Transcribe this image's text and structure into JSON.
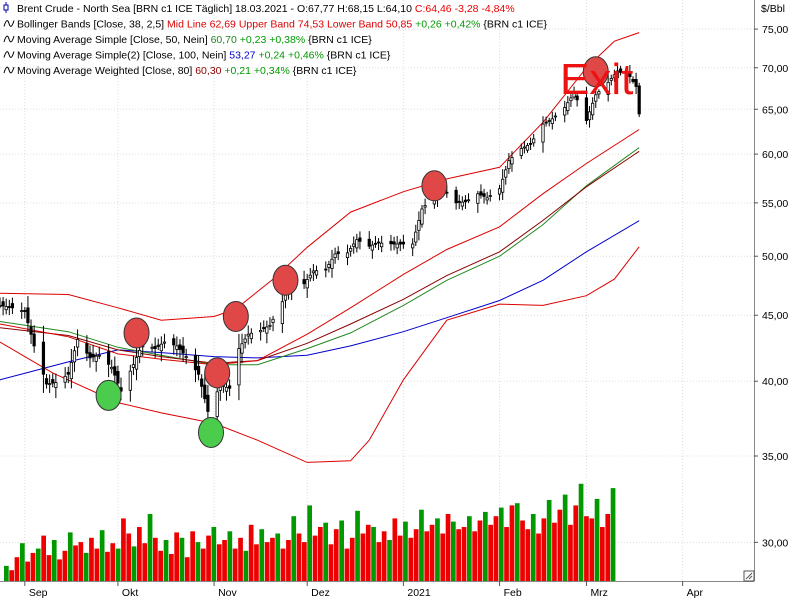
{
  "colors": {
    "background": "#ffffff",
    "grid": "#dddddd",
    "up": "#009900",
    "down": "#ee0000",
    "candle": "#000000",
    "bb_line": "#dd0000",
    "sma50": "#228822",
    "sma100": "#0000cc",
    "wma80": "#8b0000",
    "signal_red": "#e04848",
    "signal_green": "#4ccc4c"
  },
  "legend": [
    {
      "icon": "candle-icon",
      "segments": [
        {
          "text": "Brent Crude - North Sea [BRN c1 ICE  Täglich] 18.03.2021 - ",
          "color": "#000000"
        },
        {
          "text": "O:67,77 H:68,15 L:64,10 ",
          "color": "#000000"
        },
        {
          "text": "C:64,46 -3,28 -4,84%",
          "color": "#ee0000"
        }
      ]
    },
    {
      "icon": "line-indicator-icon",
      "segments": [
        {
          "text": "Bollinger Bands [Close, 38, 2,5] ",
          "color": "#000000"
        },
        {
          "text": "Mid Line 62,69 Upper Band 74,53 Lower Band 50,85 ",
          "color": "#dd0000"
        },
        {
          "text": "+0,26 +0,42% ",
          "color": "#009900"
        },
        {
          "text": "{BRN c1 ICE}",
          "color": "#000000"
        }
      ]
    },
    {
      "icon": "line-indicator-icon",
      "segments": [
        {
          "text": "Moving Average Simple [Close, 50, Nein] ",
          "color": "#000000"
        },
        {
          "text": "60,70 ",
          "color": "#228822"
        },
        {
          "text": "+0,23 +0,38% ",
          "color": "#009900"
        },
        {
          "text": "{BRN c1 ICE}",
          "color": "#000000"
        }
      ]
    },
    {
      "icon": "line-indicator-icon",
      "segments": [
        {
          "text": "Moving Average Simple(2) [Close, 100, Nein] ",
          "color": "#000000"
        },
        {
          "text": "53,27 ",
          "color": "#0000cc"
        },
        {
          "text": "+0,24 +0,46% ",
          "color": "#009900"
        },
        {
          "text": "{BRN c1 ICE}",
          "color": "#000000"
        }
      ]
    },
    {
      "icon": "line-indicator-icon",
      "segments": [
        {
          "text": "Moving Average Weighted [Close, 80] ",
          "color": "#000000"
        },
        {
          "text": "60,30 ",
          "color": "#8b0000"
        },
        {
          "text": "+0,21 +0,34% ",
          "color": "#009900"
        },
        {
          "text": "{BRN c1 ICE}",
          "color": "#000000"
        }
      ]
    }
  ],
  "annotation": {
    "text": "Exit",
    "color": "#ee1111"
  },
  "chart_data": {
    "type": "candlestick",
    "title": "Brent Crude - North Sea",
    "unit_label": "$/Bbl",
    "y_scale": "log",
    "ylim": [
      28,
      79
    ],
    "y_ticks": [
      {
        "value": 30,
        "label": "30,00"
      },
      {
        "value": 35,
        "label": "35,00"
      },
      {
        "value": 40,
        "label": "40,00"
      },
      {
        "value": 45,
        "label": "45,00"
      },
      {
        "value": 50,
        "label": "50,00"
      },
      {
        "value": 55,
        "label": "55,00"
      },
      {
        "value": 60,
        "label": "60,00"
      },
      {
        "value": 65,
        "label": "65,00"
      },
      {
        "value": 70,
        "label": "70,00"
      },
      {
        "value": 75,
        "label": "75,00"
      }
    ],
    "x_range": [
      "2020-08-24",
      "2021-04-24"
    ],
    "x_ticks": [
      {
        "date": "2020-09-01",
        "label": "Sep"
      },
      {
        "date": "2020-10-01",
        "label": "Okt"
      },
      {
        "date": "2020-11-01",
        "label": "Nov"
      },
      {
        "date": "2020-12-01",
        "label": "Dez"
      },
      {
        "date": "2021-01-01",
        "label": "2021"
      },
      {
        "date": "2021-02-01",
        "label": "Feb"
      },
      {
        "date": "2021-03-01",
        "label": "Mrz"
      },
      {
        "date": "2021-04-01",
        "label": "Apr"
      }
    ],
    "grid": true,
    "close_points": [
      [
        "2020-08-24",
        45.8
      ],
      [
        "2020-08-28",
        45.6
      ],
      [
        "2020-09-01",
        45.3
      ],
      [
        "2020-09-04",
        42.6
      ],
      [
        "2020-09-08",
        39.8
      ],
      [
        "2020-09-11",
        39.9
      ],
      [
        "2020-09-15",
        40.5
      ],
      [
        "2020-09-18",
        43.1
      ],
      [
        "2020-09-22",
        41.7
      ],
      [
        "2020-09-25",
        41.9
      ],
      [
        "2020-09-29",
        41.0
      ],
      [
        "2020-10-02",
        39.3
      ],
      [
        "2020-10-06",
        41.2
      ],
      [
        "2020-10-09",
        42.8
      ],
      [
        "2020-10-13",
        42.4
      ],
      [
        "2020-10-16",
        42.9
      ],
      [
        "2020-10-20",
        42.6
      ],
      [
        "2020-10-23",
        41.8
      ],
      [
        "2020-10-27",
        40.5
      ],
      [
        "2020-10-30",
        37.9
      ],
      [
        "2020-11-03",
        39.7
      ],
      [
        "2020-11-06",
        39.5
      ],
      [
        "2020-11-09",
        42.4
      ],
      [
        "2020-11-12",
        43.5
      ],
      [
        "2020-11-16",
        43.8
      ],
      [
        "2020-11-19",
        44.2
      ],
      [
        "2020-11-23",
        46.1
      ],
      [
        "2020-11-26",
        47.8
      ],
      [
        "2020-11-30",
        47.6
      ],
      [
        "2020-12-03",
        48.7
      ],
      [
        "2020-12-07",
        48.8
      ],
      [
        "2020-12-10",
        50.2
      ],
      [
        "2020-12-14",
        50.3
      ],
      [
        "2020-12-17",
        51.5
      ],
      [
        "2020-12-21",
        50.9
      ],
      [
        "2020-12-24",
        51.2
      ],
      [
        "2020-12-29",
        51.1
      ],
      [
        "2021-01-04",
        51.1
      ],
      [
        "2021-01-07",
        54.4
      ],
      [
        "2021-01-11",
        55.7
      ],
      [
        "2021-01-14",
        56.4
      ],
      [
        "2021-01-18",
        55.0
      ],
      [
        "2021-01-21",
        55.1
      ],
      [
        "2021-01-25",
        55.9
      ],
      [
        "2021-01-28",
        55.5
      ],
      [
        "2021-02-01",
        56.4
      ],
      [
        "2021-02-04",
        59.3
      ],
      [
        "2021-02-08",
        60.6
      ],
      [
        "2021-02-11",
        61.1
      ],
      [
        "2021-02-15",
        63.3
      ],
      [
        "2021-02-18",
        63.9
      ],
      [
        "2021-02-22",
        65.2
      ],
      [
        "2021-02-25",
        66.9
      ],
      [
        "2021-03-01",
        63.7
      ],
      [
        "2021-03-04",
        66.7
      ],
      [
        "2021-03-08",
        68.2
      ],
      [
        "2021-03-11",
        69.6
      ],
      [
        "2021-03-15",
        68.9
      ],
      [
        "2021-03-17",
        67.7
      ],
      [
        "2021-03-18",
        64.46
      ]
    ],
    "last_candle": {
      "date": "2021-03-18",
      "open": 67.77,
      "high": 68.15,
      "low": 64.1,
      "close": 64.46
    },
    "bollinger_upper": [
      [
        "2020-08-24",
        46.8
      ],
      [
        "2020-09-15",
        46.7
      ],
      [
        "2020-10-01",
        45.6
      ],
      [
        "2020-10-15",
        44.6
      ],
      [
        "2020-11-01",
        44.9
      ],
      [
        "2020-11-08",
        45.5
      ],
      [
        "2020-11-20",
        48.0
      ],
      [
        "2020-12-01",
        50.8
      ],
      [
        "2020-12-15",
        54.1
      ],
      [
        "2021-01-01",
        56.1
      ],
      [
        "2021-01-15",
        57.4
      ],
      [
        "2021-02-01",
        58.6
      ],
      [
        "2021-02-15",
        63.5
      ],
      [
        "2021-03-01",
        70.0
      ],
      [
        "2021-03-10",
        73.4
      ],
      [
        "2021-03-18",
        74.53
      ]
    ],
    "bollinger_mid": [
      [
        "2020-08-24",
        44.3
      ],
      [
        "2020-09-15",
        43.3
      ],
      [
        "2020-10-01",
        42.0
      ],
      [
        "2020-10-15",
        41.6
      ],
      [
        "2020-11-01",
        41.2
      ],
      [
        "2020-11-15",
        41.5
      ],
      [
        "2020-12-01",
        43.5
      ],
      [
        "2020-12-15",
        45.6
      ],
      [
        "2021-01-01",
        48.4
      ],
      [
        "2021-01-15",
        50.6
      ],
      [
        "2021-02-01",
        52.7
      ],
      [
        "2021-02-15",
        55.9
      ],
      [
        "2021-03-01",
        59.0
      ],
      [
        "2021-03-18",
        62.69
      ]
    ],
    "bollinger_lower": [
      [
        "2020-08-24",
        42.9
      ],
      [
        "2020-09-10",
        40.6
      ],
      [
        "2020-10-01",
        38.5
      ],
      [
        "2020-10-15",
        37.8
      ],
      [
        "2020-11-01",
        37.1
      ],
      [
        "2020-11-15",
        36.0
      ],
      [
        "2020-12-01",
        34.6
      ],
      [
        "2020-12-15",
        34.7
      ],
      [
        "2020-12-21",
        36.0
      ],
      [
        "2021-01-01",
        40.1
      ],
      [
        "2021-01-15",
        44.6
      ],
      [
        "2021-02-01",
        45.9
      ],
      [
        "2021-02-15",
        45.8
      ],
      [
        "2021-03-01",
        46.6
      ],
      [
        "2021-03-10",
        48.0
      ],
      [
        "2021-03-18",
        50.85
      ]
    ],
    "sma50": [
      [
        "2020-08-24",
        44.5
      ],
      [
        "2020-09-15",
        43.7
      ],
      [
        "2020-10-01",
        42.5
      ],
      [
        "2020-10-15",
        41.9
      ],
      [
        "2020-11-01",
        41.2
      ],
      [
        "2020-11-15",
        41.2
      ],
      [
        "2020-12-01",
        42.4
      ],
      [
        "2020-12-15",
        43.6
      ],
      [
        "2021-01-01",
        45.8
      ],
      [
        "2021-01-15",
        47.9
      ],
      [
        "2021-02-01",
        50.0
      ],
      [
        "2021-02-15",
        52.9
      ],
      [
        "2021-03-01",
        56.7
      ],
      [
        "2021-03-18",
        60.7
      ]
    ],
    "sma100": [
      [
        "2020-08-24",
        40.1
      ],
      [
        "2020-09-15",
        41.4
      ],
      [
        "2020-10-01",
        42.3
      ],
      [
        "2020-10-15",
        42.1
      ],
      [
        "2020-11-01",
        41.8
      ],
      [
        "2020-11-15",
        41.7
      ],
      [
        "2020-12-01",
        41.9
      ],
      [
        "2020-12-15",
        42.6
      ],
      [
        "2021-01-01",
        43.7
      ],
      [
        "2021-01-15",
        44.8
      ],
      [
        "2021-02-01",
        46.2
      ],
      [
        "2021-02-15",
        47.9
      ],
      [
        "2021-03-01",
        50.4
      ],
      [
        "2021-03-18",
        53.27
      ]
    ],
    "wma80": [
      [
        "2020-08-24",
        44.0
      ],
      [
        "2020-09-15",
        43.4
      ],
      [
        "2020-10-01",
        42.3
      ],
      [
        "2020-10-15",
        41.8
      ],
      [
        "2020-11-01",
        41.3
      ],
      [
        "2020-11-15",
        41.5
      ],
      [
        "2020-12-01",
        42.8
      ],
      [
        "2020-12-15",
        44.3
      ],
      [
        "2021-01-01",
        46.3
      ],
      [
        "2021-01-15",
        48.3
      ],
      [
        "2021-02-01",
        50.4
      ],
      [
        "2021-02-15",
        53.3
      ],
      [
        "2021-03-01",
        56.6
      ],
      [
        "2021-03-18",
        60.3
      ]
    ],
    "volume": {
      "max": 100,
      "bars": [
        [
          14,
          "up"
        ],
        [
          10,
          "down"
        ],
        [
          22,
          "down"
        ],
        [
          35,
          "up"
        ],
        [
          18,
          "down"
        ],
        [
          26,
          "down"
        ],
        [
          30,
          "up"
        ],
        [
          42,
          "down"
        ],
        [
          24,
          "down"
        ],
        [
          38,
          "up"
        ],
        [
          20,
          "down"
        ],
        [
          28,
          "down"
        ],
        [
          45,
          "up"
        ],
        [
          33,
          "down"
        ],
        [
          36,
          "down"
        ],
        [
          26,
          "up"
        ],
        [
          40,
          "down"
        ],
        [
          30,
          "down"
        ],
        [
          47,
          "up"
        ],
        [
          27,
          "down"
        ],
        [
          35,
          "down"
        ],
        [
          30,
          "up"
        ],
        [
          58,
          "down"
        ],
        [
          44,
          "down"
        ],
        [
          32,
          "up"
        ],
        [
          50,
          "down"
        ],
        [
          35,
          "down"
        ],
        [
          62,
          "up"
        ],
        [
          40,
          "down"
        ],
        [
          28,
          "down"
        ],
        [
          38,
          "up"
        ],
        [
          25,
          "down"
        ],
        [
          45,
          "down"
        ],
        [
          40,
          "up"
        ],
        [
          22,
          "down"
        ],
        [
          46,
          "down"
        ],
        [
          36,
          "up"
        ],
        [
          30,
          "down"
        ],
        [
          42,
          "down"
        ],
        [
          50,
          "up"
        ],
        [
          34,
          "down"
        ],
        [
          38,
          "down"
        ],
        [
          46,
          "up"
        ],
        [
          30,
          "down"
        ],
        [
          40,
          "down"
        ],
        [
          28,
          "up"
        ],
        [
          52,
          "down"
        ],
        [
          34,
          "down"
        ],
        [
          48,
          "up"
        ],
        [
          36,
          "down"
        ],
        [
          40,
          "down"
        ],
        [
          44,
          "up"
        ],
        [
          30,
          "down"
        ],
        [
          38,
          "down"
        ],
        [
          60,
          "up"
        ],
        [
          44,
          "down"
        ],
        [
          36,
          "down"
        ],
        [
          70,
          "up"
        ],
        [
          42,
          "down"
        ],
        [
          50,
          "down"
        ],
        [
          54,
          "up"
        ],
        [
          34,
          "down"
        ],
        [
          48,
          "down"
        ],
        [
          56,
          "up"
        ],
        [
          30,
          "down"
        ],
        [
          40,
          "down"
        ],
        [
          65,
          "up"
        ],
        [
          44,
          "down"
        ],
        [
          52,
          "down"
        ],
        [
          50,
          "up"
        ],
        [
          36,
          "down"
        ],
        [
          46,
          "down"
        ],
        [
          38,
          "up"
        ],
        [
          58,
          "down"
        ],
        [
          42,
          "down"
        ],
        [
          55,
          "up"
        ],
        [
          40,
          "down"
        ],
        [
          48,
          "down"
        ],
        [
          66,
          "up"
        ],
        [
          46,
          "down"
        ],
        [
          52,
          "down"
        ],
        [
          58,
          "up"
        ],
        [
          44,
          "down"
        ],
        [
          62,
          "down"
        ],
        [
          55,
          "up"
        ],
        [
          48,
          "down"
        ],
        [
          50,
          "down"
        ],
        [
          60,
          "up"
        ],
        [
          46,
          "down"
        ],
        [
          56,
          "down"
        ],
        [
          64,
          "up"
        ],
        [
          52,
          "down"
        ],
        [
          60,
          "down"
        ],
        [
          68,
          "up"
        ],
        [
          50,
          "down"
        ],
        [
          70,
          "down"
        ],
        [
          72,
          "up"
        ],
        [
          56,
          "down"
        ],
        [
          48,
          "down"
        ],
        [
          62,
          "up"
        ],
        [
          44,
          "down"
        ],
        [
          58,
          "down"
        ],
        [
          75,
          "up"
        ],
        [
          54,
          "down"
        ],
        [
          66,
          "down"
        ],
        [
          80,
          "up"
        ],
        [
          52,
          "down"
        ],
        [
          70,
          "down"
        ],
        [
          90,
          "up"
        ],
        [
          60,
          "down"
        ],
        [
          58,
          "down"
        ],
        [
          76,
          "up"
        ],
        [
          50,
          "down"
        ],
        [
          62,
          "down"
        ],
        [
          86,
          "up"
        ]
      ]
    },
    "signals": [
      {
        "type": "sell",
        "date": "2020-10-07",
        "price": 43.6
      },
      {
        "type": "buy",
        "date": "2020-09-28",
        "price": 39.0
      },
      {
        "type": "sell",
        "date": "2020-11-02",
        "price": 40.6
      },
      {
        "type": "buy",
        "date": "2020-10-31",
        "price": 36.5
      },
      {
        "type": "sell",
        "date": "2020-11-08",
        "price": 44.9
      },
      {
        "type": "sell",
        "date": "2020-11-24",
        "price": 47.9
      },
      {
        "type": "sell",
        "date": "2021-01-11",
        "price": 56.7
      },
      {
        "type": "sell",
        "date": "2021-03-04",
        "price": 69.5
      }
    ]
  }
}
